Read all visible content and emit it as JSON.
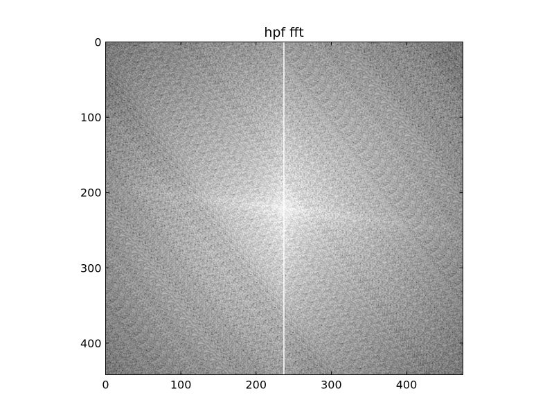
{
  "chart_data": {
    "type": "heatmap",
    "title": "hpf fft",
    "xlabel": "",
    "ylabel": "",
    "colormap": "gray",
    "image_width": 475,
    "image_height": 442,
    "xlim": [
      0,
      475
    ],
    "ylim": [
      442,
      0
    ],
    "x_ticks": [
      0,
      100,
      200,
      300,
      400
    ],
    "x_tick_labels": [
      "0",
      "100",
      "200",
      "300",
      "400"
    ],
    "y_ticks": [
      0,
      100,
      200,
      300,
      400
    ],
    "y_tick_labels": [
      "0",
      "100",
      "200",
      "300",
      "400"
    ],
    "center": [
      237,
      221
    ],
    "bright_column_x": 237,
    "grid": false,
    "legend": "none"
  }
}
